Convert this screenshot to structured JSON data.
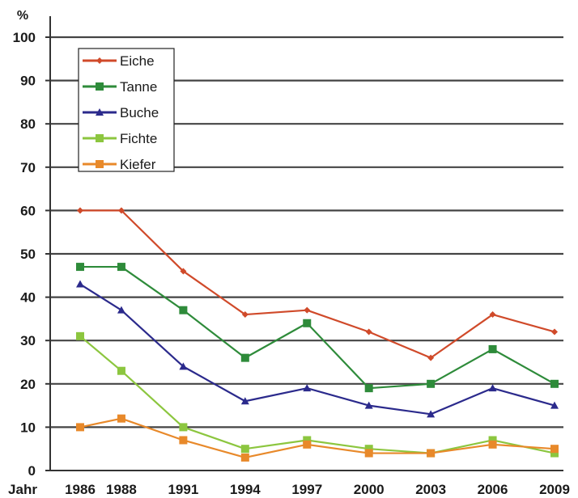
{
  "chart_data": {
    "type": "line",
    "y_unit": "%",
    "x_label": "Jahr",
    "categories": [
      "1986",
      "1988",
      "1991",
      "1994",
      "1997",
      "2000",
      "2003",
      "2006",
      "2009"
    ],
    "x": [
      1986,
      1988,
      1991,
      1994,
      1997,
      2000,
      2003,
      2006,
      2009
    ],
    "ylim": [
      0,
      100
    ],
    "yticks": [
      0,
      10,
      20,
      30,
      40,
      50,
      60,
      70,
      80,
      90,
      100
    ],
    "grid": true,
    "legend_position": "top-left",
    "series": [
      {
        "name": "Eiche",
        "marker": "diamond",
        "color": "#d04a2a",
        "values": [
          60,
          60,
          46,
          36,
          37,
          32,
          26,
          36,
          32
        ]
      },
      {
        "name": "Tanne",
        "marker": "square",
        "color": "#2e8b3a",
        "values": [
          47,
          47,
          37,
          26,
          34,
          19,
          20,
          28,
          20
        ]
      },
      {
        "name": "Buche",
        "marker": "triangle",
        "color": "#2b2a8c",
        "values": [
          43,
          37,
          24,
          16,
          19,
          15,
          13,
          19,
          15
        ]
      },
      {
        "name": "Fichte",
        "marker": "square",
        "color": "#8cc63f",
        "values": [
          31,
          23,
          10,
          5,
          7,
          5,
          4,
          7,
          4
        ]
      },
      {
        "name": "Kiefer",
        "marker": "square",
        "color": "#e8892a",
        "values": [
          10,
          12,
          7,
          3,
          6,
          4,
          4,
          6,
          5
        ]
      }
    ]
  }
}
